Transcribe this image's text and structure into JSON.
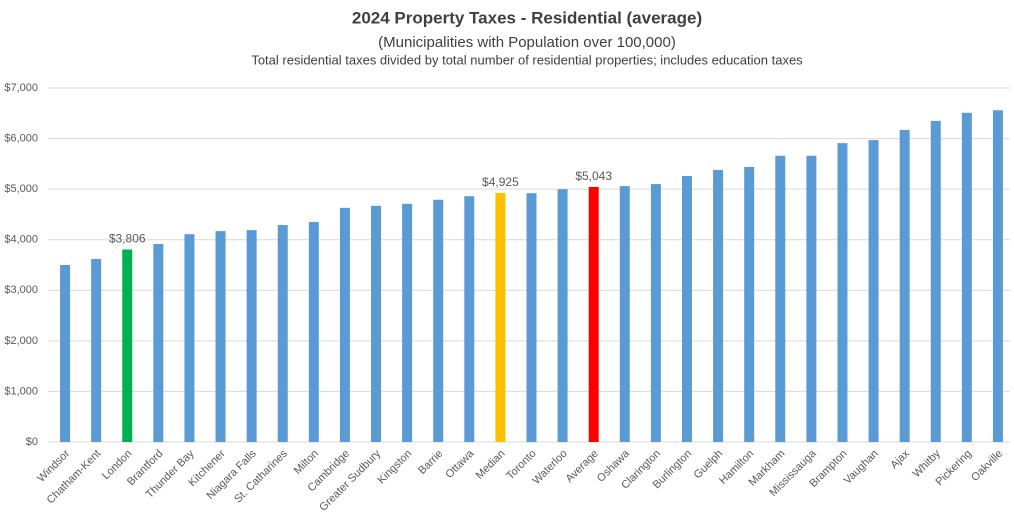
{
  "chart_data": {
    "type": "bar",
    "title": "2024 Property Taxes - Residential (average)",
    "subtitle": "(Municipalities with Population over 100,000)",
    "note": "Total residential taxes divided by total number of residential properties; includes education taxes",
    "categories": [
      "Windsor",
      "Chatham-Kent",
      "London",
      "Brantford",
      "Thunder Bay",
      "Kitchener",
      "Niagara Falls",
      "St. Catharines",
      "Milton",
      "Cambridge",
      "Greater Sudbury",
      "Kingston",
      "Barrie",
      "Ottawa",
      "Median",
      "Toronto",
      "Waterloo",
      "Average",
      "Oshawa",
      "Clarington",
      "Burlington",
      "Guelph",
      "Hamilton",
      "Markham",
      "Mississauga",
      "Brampton",
      "Vaughan",
      "Ajax",
      "Whitby",
      "Pickering",
      "Oakville"
    ],
    "values": [
      3500,
      3620,
      3806,
      3915,
      4110,
      4170,
      4190,
      4290,
      4350,
      4630,
      4670,
      4710,
      4790,
      4860,
      4925,
      4920,
      5000,
      5043,
      5060,
      5100,
      5260,
      5380,
      5440,
      5660,
      5660,
      5910,
      5970,
      6170,
      6350,
      6510,
      6560
    ],
    "value_labels": [
      null,
      null,
      "$3,806",
      null,
      null,
      null,
      null,
      null,
      null,
      null,
      null,
      null,
      null,
      null,
      "$4,925",
      null,
      null,
      "$5,043",
      null,
      null,
      null,
      null,
      null,
      null,
      null,
      null,
      null,
      null,
      null,
      null,
      null
    ],
    "colors": [
      "#5b9bd5",
      "#5b9bd5",
      "#00b050",
      "#5b9bd5",
      "#5b9bd5",
      "#5b9bd5",
      "#5b9bd5",
      "#5b9bd5",
      "#5b9bd5",
      "#5b9bd5",
      "#5b9bd5",
      "#5b9bd5",
      "#5b9bd5",
      "#5b9bd5",
      "#ffc000",
      "#5b9bd5",
      "#5b9bd5",
      "#ff0000",
      "#5b9bd5",
      "#5b9bd5",
      "#5b9bd5",
      "#5b9bd5",
      "#5b9bd5",
      "#5b9bd5",
      "#5b9bd5",
      "#5b9bd5",
      "#5b9bd5",
      "#5b9bd5",
      "#5b9bd5",
      "#5b9bd5",
      "#5b9bd5"
    ],
    "ylim": [
      0,
      7000
    ],
    "yticks": [
      {
        "value": 0,
        "label": "$0"
      },
      {
        "value": 1000,
        "label": "$1,000"
      },
      {
        "value": 2000,
        "label": "$2,000"
      },
      {
        "value": 3000,
        "label": "$3,000"
      },
      {
        "value": 4000,
        "label": "$4,000"
      },
      {
        "value": 5000,
        "label": "$5,000"
      },
      {
        "value": 6000,
        "label": "$6,000"
      },
      {
        "value": 7000,
        "label": "$7,000"
      }
    ],
    "grid": true
  }
}
